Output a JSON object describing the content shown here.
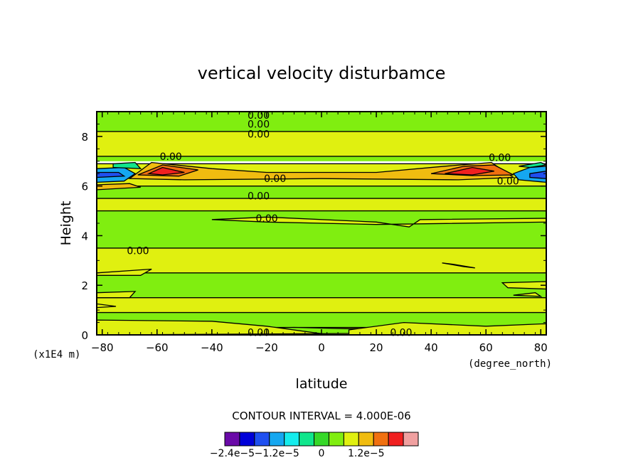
{
  "chart_data": {
    "type": "heatmap",
    "title": "vertical velocity disturbamce",
    "xlabel": "latitude",
    "ylabel": "Height",
    "x_units": "(degree_north)",
    "y_units": "(x1E4 m)",
    "xlim": [
      -82,
      82
    ],
    "ylim": [
      0,
      9
    ],
    "x_ticks": [
      -80,
      -60,
      -40,
      -20,
      0,
      20,
      40,
      60,
      80
    ],
    "y_ticks": [
      0,
      2,
      4,
      6,
      8
    ],
    "contour_interval_label": "CONTOUR INTERVAL = 4.000E-06",
    "colorbar": {
      "colors": [
        "#6a0aa8",
        "#0000d8",
        "#1f50f0",
        "#15a7f0",
        "#15ecec",
        "#10e68c",
        "#36d828",
        "#80ee10",
        "#e0f010",
        "#f0bc10",
        "#f07010",
        "#f02020",
        "#f0a0a0"
      ],
      "labels": [
        {
          "text": "−2.4e−5",
          "value": -2.4e-05
        },
        {
          "text": "−1.2e−5",
          "value": -1.2e-05
        },
        {
          "text": "0",
          "value": 0
        },
        {
          "text": "1.2e−5",
          "value": 1.2e-05
        }
      ]
    },
    "bands": [
      {
        "color": "#80ee10",
        "from": 8.2,
        "to": 9.0
      },
      {
        "color": "#e0f010",
        "from": 7.2,
        "to": 8.2
      },
      {
        "color": "#80ee10",
        "from": 7.0,
        "to": 7.2
      },
      {
        "color": "#e0f010",
        "from": 6.0,
        "to": 6.9
      },
      {
        "color": "#80ee10",
        "from": 5.5,
        "to": 6.0
      },
      {
        "color": "#e0f010",
        "from": 5.0,
        "to": 5.5
      },
      {
        "color": "#80ee10",
        "from": 3.5,
        "to": 5.0
      },
      {
        "color": "#e0f010",
        "from": 2.5,
        "to": 3.5
      },
      {
        "color": "#80ee10",
        "from": 1.5,
        "to": 2.5
      },
      {
        "color": "#e0f010",
        "from": 0.9,
        "to": 1.5
      },
      {
        "color": "#80ee10",
        "from": 0.3,
        "to": 0.9
      },
      {
        "color": "#e0f010",
        "from": 0.0,
        "to": 0.3
      }
    ],
    "features": [
      {
        "color": "#f0bc10",
        "points": [
          [
            -70,
            6.3
          ],
          [
            -62,
            6.95
          ],
          [
            -40,
            6.7
          ],
          [
            -20,
            6.55
          ],
          [
            20,
            6.55
          ],
          [
            45,
            6.8
          ],
          [
            62,
            6.95
          ],
          [
            70,
            6.35
          ],
          [
            50,
            6.25
          ],
          [
            0,
            6.3
          ],
          [
            -50,
            6.25
          ]
        ]
      },
      {
        "color": "#f07010",
        "points": [
          [
            -67,
            6.45
          ],
          [
            -58,
            6.85
          ],
          [
            -45,
            6.65
          ],
          [
            -52,
            6.4
          ]
        ]
      },
      {
        "color": "#f02020",
        "points": [
          [
            -63,
            6.5
          ],
          [
            -58,
            6.75
          ],
          [
            -50,
            6.55
          ],
          [
            -58,
            6.45
          ]
        ]
      },
      {
        "color": "#f07010",
        "points": [
          [
            40,
            6.5
          ],
          [
            52,
            6.8
          ],
          [
            63,
            6.85
          ],
          [
            70,
            6.45
          ],
          [
            55,
            6.42
          ]
        ]
      },
      {
        "color": "#f02020",
        "points": [
          [
            45,
            6.5
          ],
          [
            55,
            6.75
          ],
          [
            63,
            6.6
          ],
          [
            55,
            6.45
          ]
        ]
      },
      {
        "color": "#f0bc10",
        "points": [
          [
            -82,
            6.05
          ],
          [
            -70,
            6.1
          ],
          [
            -66,
            5.95
          ],
          [
            -82,
            5.85
          ]
        ]
      },
      {
        "color": "#15a7f0",
        "points": [
          [
            -82,
            6.7
          ],
          [
            -72,
            6.75
          ],
          [
            -68,
            6.5
          ],
          [
            -72,
            6.2
          ],
          [
            -82,
            6.15
          ]
        ]
      },
      {
        "color": "#1f50f0",
        "points": [
          [
            -82,
            6.55
          ],
          [
            -74,
            6.55
          ],
          [
            -72,
            6.4
          ],
          [
            -82,
            6.35
          ]
        ]
      },
      {
        "color": "#10e68c",
        "points": [
          [
            -76,
            6.9
          ],
          [
            -68,
            6.95
          ],
          [
            -66,
            6.7
          ],
          [
            -76,
            6.75
          ]
        ]
      },
      {
        "color": "#15a7f0",
        "points": [
          [
            70,
            6.5
          ],
          [
            76,
            6.75
          ],
          [
            82,
            6.8
          ],
          [
            82,
            6.15
          ],
          [
            72,
            6.25
          ]
        ]
      },
      {
        "color": "#1f50f0",
        "points": [
          [
            76,
            6.5
          ],
          [
            82,
            6.6
          ],
          [
            82,
            6.3
          ],
          [
            76,
            6.35
          ]
        ]
      },
      {
        "color": "#10e68c",
        "points": [
          [
            72,
            6.8
          ],
          [
            80,
            6.95
          ],
          [
            82,
            6.85
          ],
          [
            76,
            6.75
          ]
        ]
      },
      {
        "color": "#e0f010",
        "points": [
          [
            -40,
            4.65
          ],
          [
            -20,
            4.75
          ],
          [
            20,
            4.55
          ],
          [
            32,
            4.35
          ],
          [
            36,
            4.65
          ],
          [
            82,
            4.7
          ],
          [
            82,
            4.55
          ],
          [
            20,
            4.45
          ],
          [
            -20,
            4.55
          ]
        ]
      },
      {
        "color": "#e0f010",
        "points": [
          [
            -82,
            4.1
          ],
          [
            -82,
            4.05
          ],
          [
            -82,
            4.1
          ]
        ]
      },
      {
        "color": "#e0f010",
        "points": [
          [
            44,
            2.9
          ],
          [
            52,
            2.75
          ],
          [
            56,
            2.7
          ],
          [
            48,
            2.85
          ]
        ]
      },
      {
        "color": "#e0f010",
        "points": [
          [
            -82,
            2.5
          ],
          [
            -62,
            2.65
          ],
          [
            -66,
            2.4
          ],
          [
            -82,
            2.4
          ]
        ]
      },
      {
        "color": "#e0f010",
        "points": [
          [
            66,
            2.1
          ],
          [
            82,
            2.15
          ],
          [
            82,
            1.85
          ],
          [
            68,
            1.9
          ]
        ]
      },
      {
        "color": "#e0f010",
        "points": [
          [
            70,
            1.6
          ],
          [
            78,
            1.7
          ],
          [
            80,
            1.55
          ]
        ]
      },
      {
        "color": "#e0f010",
        "points": [
          [
            -82,
            1.7
          ],
          [
            -68,
            1.75
          ],
          [
            -70,
            1.5
          ],
          [
            -82,
            1.5
          ]
        ]
      },
      {
        "color": "#e0f010",
        "points": [
          [
            -82,
            1.25
          ],
          [
            -82,
            1.1
          ],
          [
            -75,
            1.15
          ]
        ]
      },
      {
        "color": "#80ee10",
        "points": [
          [
            -60,
            0.2
          ],
          [
            -30,
            0.25
          ],
          [
            -10,
            0.3
          ],
          [
            10,
            0.25
          ],
          [
            40,
            0.3
          ],
          [
            60,
            0.3
          ],
          [
            60,
            0.1
          ],
          [
            0,
            0.05
          ],
          [
            -50,
            0.1
          ]
        ]
      },
      {
        "color": "#e0f010",
        "points": [
          [
            10,
            0.2
          ],
          [
            30,
            0.5
          ],
          [
            60,
            0.35
          ],
          [
            82,
            0.45
          ],
          [
            82,
            0.0
          ],
          [
            10,
            0.0
          ]
        ]
      },
      {
        "color": "#e0f010",
        "points": [
          [
            -82,
            0.6
          ],
          [
            -40,
            0.55
          ],
          [
            -20,
            0.35
          ],
          [
            0,
            0.05
          ],
          [
            -82,
            0.0
          ]
        ]
      }
    ],
    "contour_labels": [
      {
        "text": "0.00",
        "x": -27,
        "y": 8.85
      },
      {
        "text": "0.00",
        "x": -27,
        "y": 8.5
      },
      {
        "text": "0.00",
        "x": -27,
        "y": 8.1
      },
      {
        "text": "0.00",
        "x": -59,
        "y": 7.2
      },
      {
        "text": "0.00",
        "x": -21,
        "y": 6.3
      },
      {
        "text": "0.00",
        "x": -27,
        "y": 5.6
      },
      {
        "text": "0.00",
        "x": -24,
        "y": 4.7
      },
      {
        "text": "0.00",
        "x": -71,
        "y": 3.4
      },
      {
        "text": "0.00",
        "x": 61,
        "y": 7.15
      },
      {
        "text": "0.00",
        "x": 64,
        "y": 6.2
      },
      {
        "text": "0.00",
        "x": -27,
        "y": 0.1
      },
      {
        "text": "0.00",
        "x": 25,
        "y": 0.1
      }
    ]
  }
}
